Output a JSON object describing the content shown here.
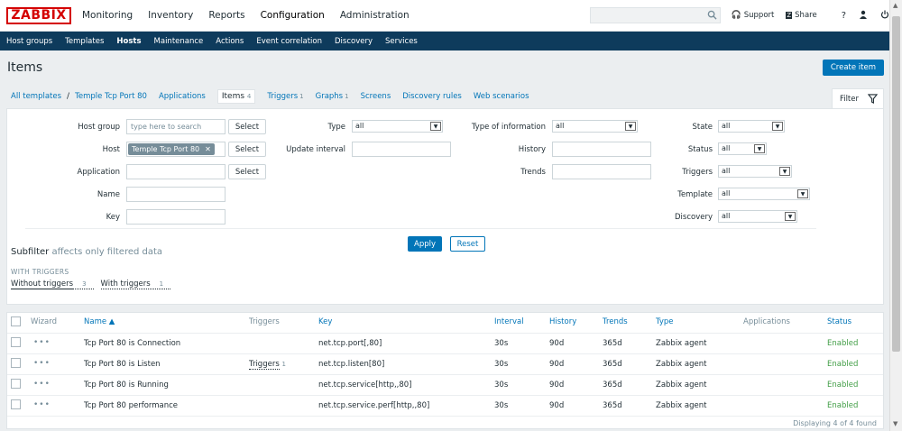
{
  "logo": "ZABBIX",
  "topnav": [
    "Monitoring",
    "Inventory",
    "Reports",
    "Configuration",
    "Administration"
  ],
  "topright": {
    "support": "Support",
    "share": "Share",
    "help": "?"
  },
  "subnav": [
    "Host groups",
    "Templates",
    "Hosts",
    "Maintenance",
    "Actions",
    "Event correlation",
    "Discovery",
    "Services"
  ],
  "page_title": "Items",
  "create_button": "Create item",
  "tabs": {
    "all_templates": "All templates",
    "template": "Temple Tcp Port 80",
    "applications": "Applications",
    "items": "Items",
    "items_count": "4",
    "triggers": "Triggers",
    "triggers_count": "1",
    "graphs": "Graphs",
    "graphs_count": "1",
    "screens": "Screens",
    "discovery_rules": "Discovery rules",
    "web_scenarios": "Web scenarios"
  },
  "filter_tab": "Filter",
  "filter": {
    "host_group_label": "Host group",
    "host_group_placeholder": "type here to search",
    "host_label": "Host",
    "host_chip": "Temple Tcp Port 80",
    "application_label": "Application",
    "name_label": "Name",
    "key_label": "Key",
    "select": "Select",
    "type_label": "Type",
    "type_value": "all",
    "update_interval_label": "Update interval",
    "type_info_label": "Type of information",
    "type_info_value": "all",
    "history_label": "History",
    "trends_label": "Trends",
    "state_label": "State",
    "state_value": "all",
    "status_label": "Status",
    "status_value": "all",
    "triggers_label": "Triggers",
    "triggers_value": "all",
    "template_label": "Template",
    "template_value": "all",
    "discovery_label": "Discovery",
    "discovery_value": "all",
    "apply": "Apply",
    "reset": "Reset"
  },
  "subfilter": {
    "title": "Subfilter",
    "note": "affects only filtered data",
    "section": "WITH TRIGGERS",
    "without": "Without triggers",
    "without_count": "3",
    "with": "With triggers",
    "with_count": "1"
  },
  "table": {
    "headers": {
      "wizard": "Wizard",
      "name": "Name ▲",
      "triggers": "Triggers",
      "key": "Key",
      "interval": "Interval",
      "history": "History",
      "trends": "Trends",
      "type": "Type",
      "applications": "Applications",
      "status": "Status"
    },
    "rows": [
      {
        "name": "Tcp Port 80 is Connection",
        "triggers": "",
        "triggers_count": "",
        "key": "net.tcp.port[,80]",
        "interval": "30s",
        "history": "90d",
        "trends": "365d",
        "type": "Zabbix agent",
        "applications": "",
        "status": "Enabled"
      },
      {
        "name": "Tcp Port 80 is Listen",
        "triggers": "Triggers",
        "triggers_count": "1",
        "key": "net.tcp.listen[80]",
        "interval": "30s",
        "history": "90d",
        "trends": "365d",
        "type": "Zabbix agent",
        "applications": "",
        "status": "Enabled"
      },
      {
        "name": "Tcp Port 80 is Running",
        "triggers": "",
        "triggers_count": "",
        "key": "net.tcp.service[http,,80]",
        "interval": "30s",
        "history": "90d",
        "trends": "365d",
        "type": "Zabbix agent",
        "applications": "",
        "status": "Enabled"
      },
      {
        "name": "Tcp Port 80 performance",
        "triggers": "",
        "triggers_count": "",
        "key": "net.tcp.service.perf[http,,80]",
        "interval": "30s",
        "history": "90d",
        "trends": "365d",
        "type": "Zabbix agent",
        "applications": "",
        "status": "Enabled"
      }
    ],
    "footer": "Displaying 4 of 4 found"
  },
  "colors": {
    "brand": "#d40000",
    "nav_bg": "#0e3b5c",
    "link": "#0275b8",
    "enabled": "#429e47"
  }
}
